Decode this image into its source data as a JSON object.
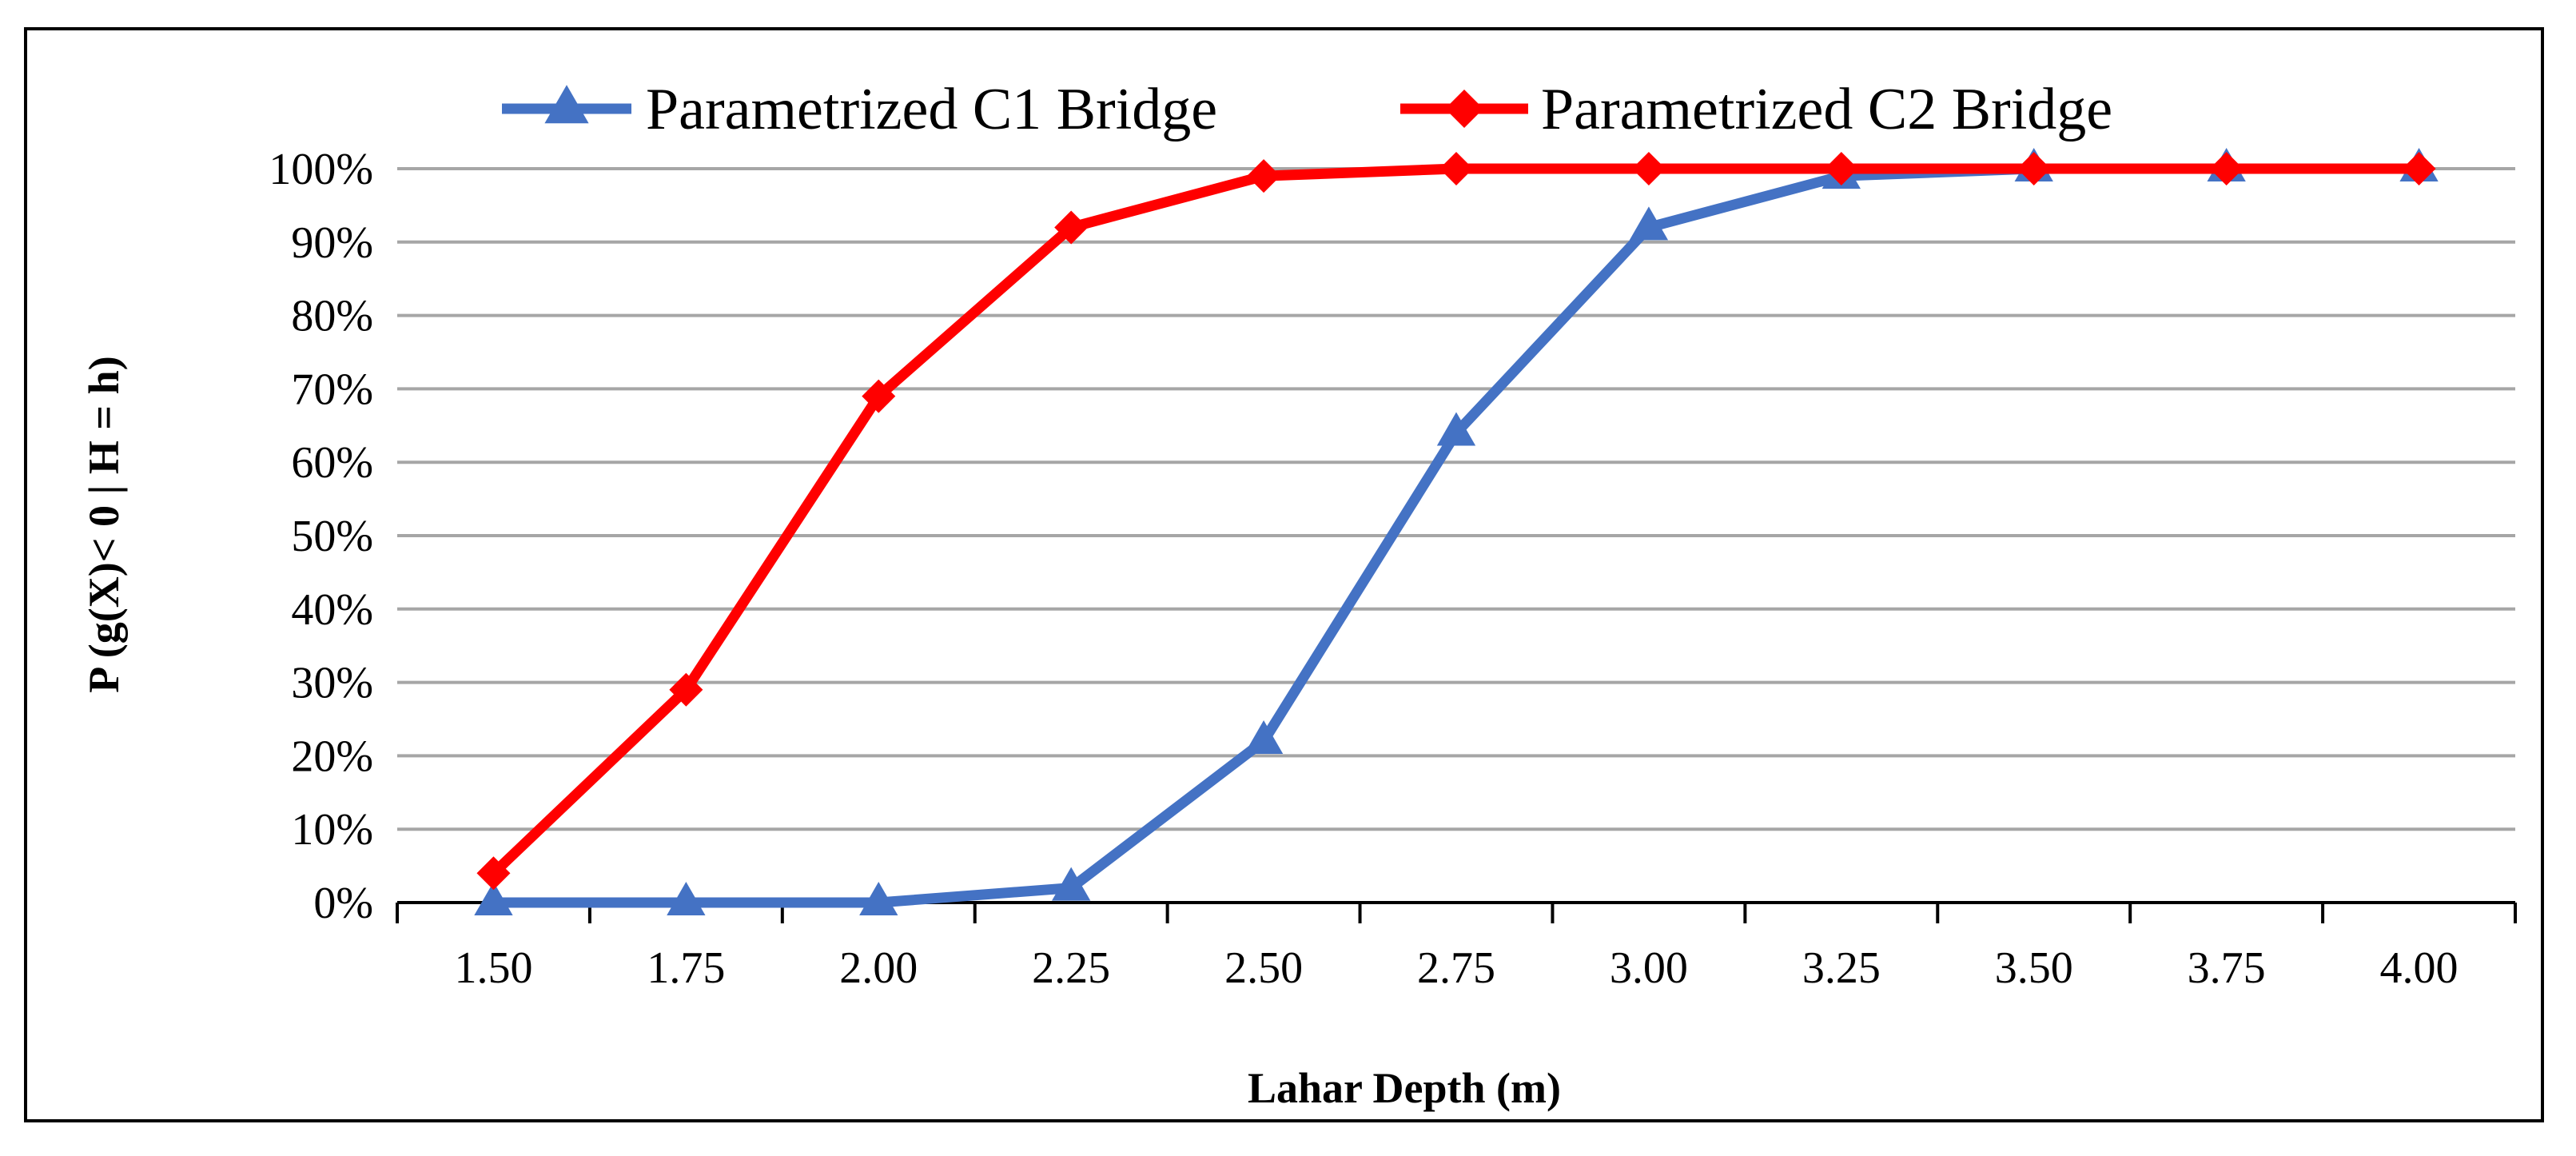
{
  "chart_data": {
    "type": "line",
    "title": "",
    "xlabel": "Lahar Depth (m)",
    "ylabel": "P (g(X)< 0 | H = h)",
    "categories": [
      "1.50",
      "1.75",
      "2.00",
      "2.25",
      "2.50",
      "2.75",
      "3.00",
      "3.25",
      "3.50",
      "3.75",
      "4.00"
    ],
    "yticks": [
      "0%",
      "10%",
      "20%",
      "30%",
      "40%",
      "50%",
      "60%",
      "70%",
      "80%",
      "90%",
      "100%"
    ],
    "ylim": [
      0,
      100
    ],
    "grid": true,
    "legend_position": "top",
    "series": [
      {
        "name": "Parametrized C1 Bridge",
        "color": "#4472C4",
        "marker": "triangle",
        "values": [
          0,
          0,
          0,
          2,
          22,
          64,
          92,
          99,
          100,
          100,
          100
        ]
      },
      {
        "name": "Parametrized C2 Bridge",
        "color": "#FF0000",
        "marker": "diamond",
        "values": [
          4,
          29,
          69,
          92,
          99,
          100,
          100,
          100,
          100,
          100,
          100
        ]
      }
    ]
  }
}
